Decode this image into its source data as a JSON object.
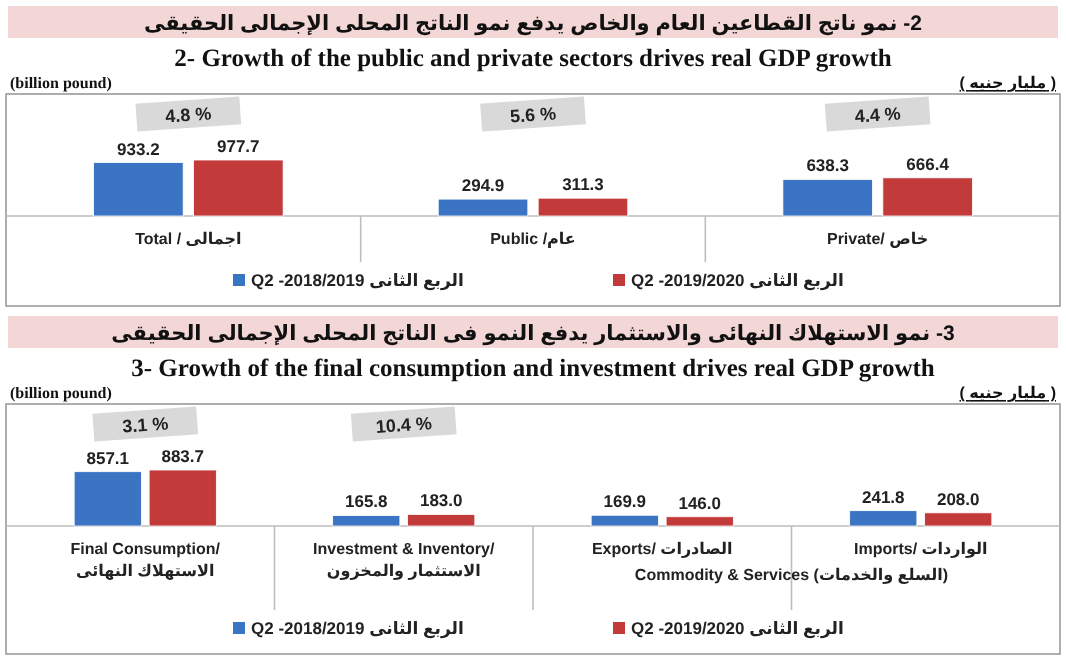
{
  "chart_data": [
    {
      "type": "bar",
      "title": "2- نمو ناتج القطاعين العام والخاص يدفع نمو الناتج المحلى الإجمالى الحقيقى",
      "subtitle": "2-  Growth of the public and private sectors drives real GDP growth",
      "ylabel": "(billion pound)",
      "categories": [
        "Total  /  اجمالى",
        "Public /عام",
        "Private/ خاص"
      ],
      "series": [
        {
          "name": "Q2  -2018/2019 الربع الثانى",
          "color": "#3b74c2",
          "values": [
            933.2,
            294.9,
            638.3
          ],
          "value_labels": [
            "933.2",
            "294.9",
            "638.3"
          ]
        },
        {
          "name": "Q2  -2019/2020 الربع الثانى",
          "color": "#c23a3a",
          "values": [
            977.7,
            311.3,
            666.4
          ],
          "value_labels": [
            "977.7",
            "311.3",
            "666.4"
          ]
        }
      ],
      "annotations": [
        "( مليار جنيه )",
        "4.8 %",
        "5.6 %",
        "4.4 %"
      ],
      "legend": "bottom"
    },
    {
      "type": "bar",
      "title": "3- نمو الاستهلاك النهائى والاستثمار يدفع النمو فى الناتج المحلى الإجمالى الحقيقى",
      "subtitle": "3- Growth of the final consumption and investment drives real GDP growth",
      "ylabel": "(billion pound)",
      "xlabel": "Commodity & Services (السلع والخدمات)",
      "categories": [
        "Final Consumption/ الاستهلاك النهائى",
        "Investment & Inventory/ الاستثمار والمخزون",
        "Exports/ الصادرات",
        "Imports/ الواردات"
      ],
      "series": [
        {
          "name": "Q2  -2018/2019 الربع الثانى",
          "color": "#3b74c2",
          "values": [
            857.1,
            165.8,
            169.9,
            241.8
          ],
          "value_labels": [
            "857.1",
            "165.8",
            "169.9",
            "241.8"
          ]
        },
        {
          "name": "Q2  -2019/2020 الربع الثانى",
          "color": "#c23a3a",
          "values": [
            883.7,
            183.0,
            146.0,
            208.0
          ],
          "value_labels": [
            "883.7",
            "183.0",
            "146.0",
            "208.0"
          ]
        }
      ],
      "annotations": [
        "( مليار جنيه )",
        "3.1 %",
        "10.4 %"
      ],
      "legend": "bottom"
    }
  ]
}
